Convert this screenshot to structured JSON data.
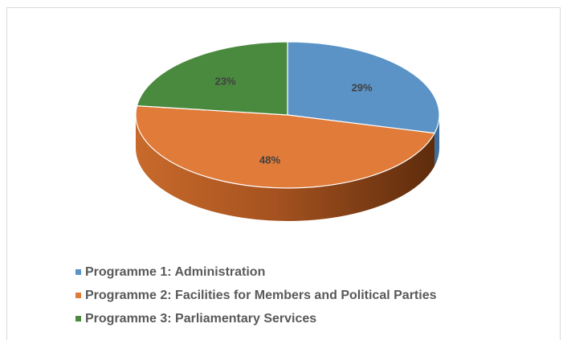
{
  "chart_data": {
    "type": "pie",
    "style": "3d",
    "title": "",
    "slices": [
      {
        "label": "Programme 1: Administration",
        "value": 29,
        "data_label": "29%",
        "color": "#5b93c7"
      },
      {
        "label": "Programme 2: Facilities for Members and Political Parties",
        "value": 48,
        "data_label": "48%",
        "color": "#e07b39"
      },
      {
        "label": "Programme 3: Parliamentary Services",
        "value": 23,
        "data_label": "23%",
        "color": "#4a8a3f"
      }
    ],
    "legend_position": "bottom-left"
  }
}
